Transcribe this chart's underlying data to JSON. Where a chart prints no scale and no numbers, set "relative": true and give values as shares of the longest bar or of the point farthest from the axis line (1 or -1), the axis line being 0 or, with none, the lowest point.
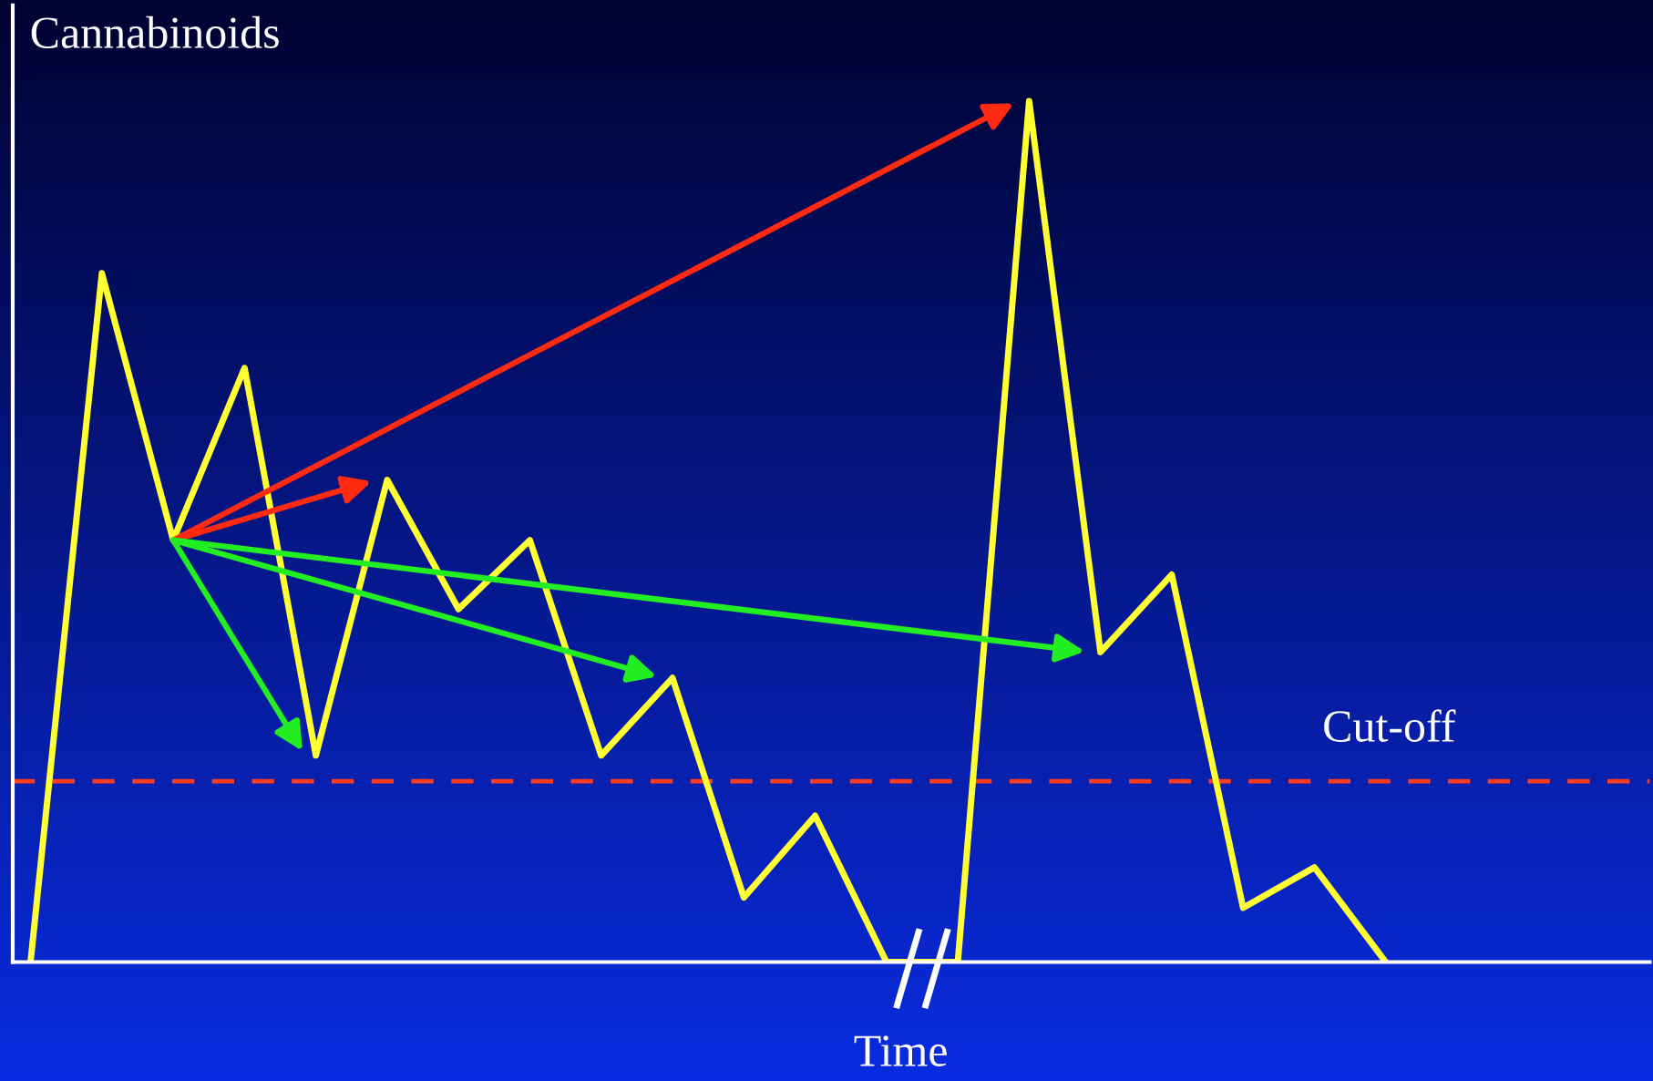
{
  "chart_data": {
    "type": "line",
    "relative": true,
    "ylabel": "Cannabinoids",
    "xlabel": "Time",
    "categories": [
      null,
      null,
      null,
      null,
      null,
      null,
      null,
      null,
      null,
      null,
      null,
      null,
      null,
      null,
      null,
      null,
      null,
      null,
      null,
      null
    ],
    "series": [
      {
        "color": "#ffff33",
        "values": [
          0,
          0.8,
          0.49,
          0.69,
          0.24,
          0.56,
          0.41,
          0.49,
          0.24,
          0.33,
          0.075,
          0.17,
          0,
          0,
          1,
          0.36,
          0.45,
          0.063,
          0.11,
          0
        ]
      }
    ],
    "ref_lines": [
      {
        "axis": "y",
        "value": 0.21,
        "label": "Cut-off",
        "color": "#ff3c1e",
        "line_style": "dashed"
      }
    ],
    "marker": "none",
    "line_style": "solid"
  }
}
